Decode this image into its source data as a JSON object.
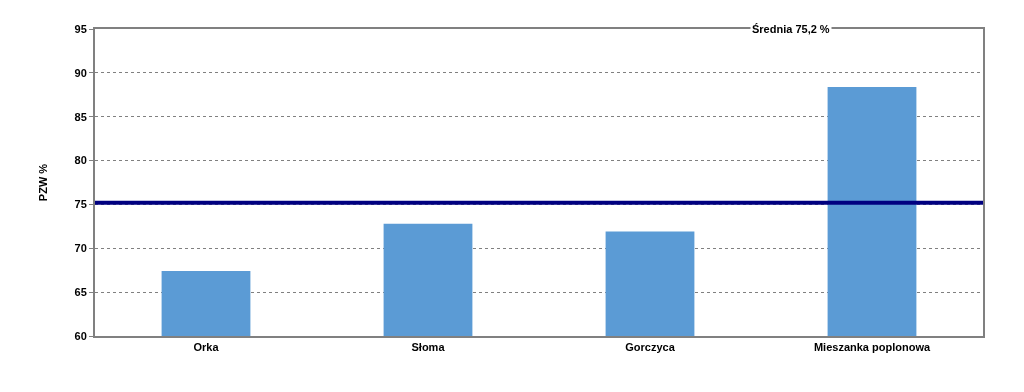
{
  "chart_data": {
    "type": "bar",
    "ylabel": "PZW %",
    "categories": [
      "Orka",
      "Słoma",
      "Gorczyca",
      "Mieszanka poplonowa"
    ],
    "values": [
      67.4,
      72.8,
      71.9,
      88.4
    ],
    "color": "#5b9bd5",
    "ylim": [
      60,
      95
    ],
    "yticks": [
      60,
      65,
      70,
      75,
      80,
      85,
      90,
      95
    ],
    "grid": "y",
    "annotations": [
      "Średnia 75,2 %"
    ],
    "ref_lines": [
      {
        "axis": "y",
        "value": 75.2,
        "color": "#000080",
        "line_style": "solid"
      }
    ]
  }
}
